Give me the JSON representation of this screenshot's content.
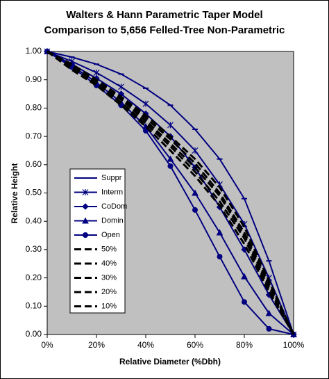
{
  "chart_data": {
    "type": "line",
    "title": "Walters & Hann Parametric Taper Model",
    "subtitle": "Comparison to 5,656 Felled-Tree Non-Parametric",
    "x_label": "Relative Diameter (%Dbh)",
    "y_label": "Relative Height",
    "x": [
      0,
      0.1,
      0.2,
      0.3,
      0.4,
      0.5,
      0.6,
      0.7,
      0.8,
      0.9,
      1.0
    ],
    "series": [
      {
        "name": "Suppr",
        "color": "#000080",
        "marker": "dash",
        "line_style": "solid",
        "values": [
          1.0,
          0.98,
          0.955,
          0.92,
          0.87,
          0.81,
          0.725,
          0.62,
          0.48,
          0.26,
          0
        ]
      },
      {
        "name": "Interm",
        "color": "#000080",
        "marker": "star",
        "line_style": "solid",
        "values": [
          1.0,
          0.965,
          0.925,
          0.875,
          0.815,
          0.74,
          0.65,
          0.53,
          0.39,
          0.2,
          0
        ]
      },
      {
        "name": "CoDom",
        "color": "#000080",
        "marker": "diamond",
        "line_style": "solid",
        "values": [
          1.0,
          0.955,
          0.905,
          0.85,
          0.78,
          0.7,
          0.59,
          0.45,
          0.3,
          0.14,
          0
        ]
      },
      {
        "name": "Domin",
        "color": "#000080",
        "marker": "triangle",
        "line_style": "solid",
        "values": [
          1.0,
          0.95,
          0.89,
          0.82,
          0.735,
          0.62,
          0.5,
          0.36,
          0.205,
          0.075,
          0
        ]
      },
      {
        "name": "Open",
        "color": "#000080",
        "marker": "circle",
        "line_style": "solid",
        "values": [
          1.0,
          0.945,
          0.88,
          0.81,
          0.72,
          0.595,
          0.44,
          0.275,
          0.115,
          0.02,
          0
        ]
      },
      {
        "name": "50%",
        "color": "#000000",
        "marker": "none",
        "line_style": "dashed",
        "values": [
          1.0,
          0.955,
          0.9,
          0.84,
          0.775,
          0.7,
          0.62,
          0.52,
          0.38,
          0.19,
          0
        ]
      },
      {
        "name": "40%",
        "color": "#000000",
        "marker": "none",
        "line_style": "dashed",
        "values": [
          1.0,
          0.95,
          0.895,
          0.835,
          0.765,
          0.69,
          0.605,
          0.5,
          0.36,
          0.18,
          0
        ]
      },
      {
        "name": "30%",
        "color": "#000000",
        "marker": "none",
        "line_style": "dashed",
        "values": [
          1.0,
          0.945,
          0.89,
          0.83,
          0.755,
          0.675,
          0.59,
          0.49,
          0.35,
          0.17,
          0
        ]
      },
      {
        "name": "20%",
        "color": "#000000",
        "marker": "none",
        "line_style": "dashed",
        "values": [
          1.0,
          0.94,
          0.885,
          0.82,
          0.745,
          0.665,
          0.575,
          0.47,
          0.34,
          0.16,
          0
        ]
      },
      {
        "name": "10%",
        "color": "#000000",
        "marker": "none",
        "line_style": "dashed",
        "values": [
          1.0,
          0.935,
          0.88,
          0.81,
          0.735,
          0.65,
          0.56,
          0.455,
          0.32,
          0.15,
          0
        ]
      }
    ],
    "xlim": [
      0,
      1
    ],
    "ylim": [
      0,
      1
    ],
    "xticks": [
      {
        "value": 0,
        "label": "0%"
      },
      {
        "value": 0.2,
        "label": "20%"
      },
      {
        "value": 0.4,
        "label": "40%"
      },
      {
        "value": 0.6,
        "label": "60%"
      },
      {
        "value": 0.8,
        "label": "80%"
      },
      {
        "value": 1.0,
        "label": "100%"
      }
    ],
    "yticks": [
      {
        "value": 0,
        "label": "0.00"
      },
      {
        "value": 0.1,
        "label": "0.10"
      },
      {
        "value": 0.2,
        "label": "0.20"
      },
      {
        "value": 0.3,
        "label": "0.30"
      },
      {
        "value": 0.4,
        "label": "0.40"
      },
      {
        "value": 0.5,
        "label": "0.50"
      },
      {
        "value": 0.6,
        "label": "0.60"
      },
      {
        "value": 0.7,
        "label": "0.70"
      },
      {
        "value": 0.8,
        "label": "0.80"
      },
      {
        "value": 0.9,
        "label": "0.90"
      },
      {
        "value": 1.0,
        "label": "1.00"
      }
    ],
    "grid": false,
    "plot_background": "#c0c0c0",
    "legend": "left"
  }
}
